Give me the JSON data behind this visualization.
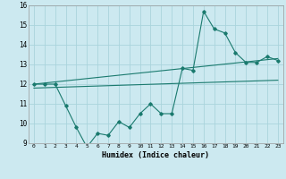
{
  "title": "",
  "xlabel": "Humidex (Indice chaleur)",
  "bg_color": "#cce9f0",
  "grid_color": "#aad4dc",
  "line_color": "#1a7a6e",
  "series1_x": [
    0,
    1,
    2,
    3,
    4,
    5,
    6,
    7,
    8,
    9,
    10,
    11,
    12,
    13,
    14,
    15,
    16,
    17,
    18,
    19,
    20,
    21,
    22,
    23
  ],
  "series1_y": [
    12.0,
    12.0,
    12.0,
    10.9,
    9.8,
    8.8,
    9.5,
    9.4,
    10.1,
    9.8,
    10.5,
    11.0,
    10.5,
    10.5,
    12.8,
    12.7,
    15.7,
    14.8,
    14.6,
    13.6,
    13.1,
    13.1,
    13.4,
    13.2
  ],
  "line2_x": [
    0,
    23
  ],
  "line2_y": [
    12.0,
    13.3
  ],
  "line3_x": [
    0,
    23
  ],
  "line3_y": [
    11.8,
    12.2
  ],
  "ylim": [
    9,
    16
  ],
  "xlim": [
    -0.5,
    23.5
  ],
  "yticks": [
    9,
    10,
    11,
    12,
    13,
    14,
    15,
    16
  ],
  "xticks": [
    0,
    1,
    2,
    3,
    4,
    5,
    6,
    7,
    8,
    9,
    10,
    11,
    12,
    13,
    14,
    15,
    16,
    17,
    18,
    19,
    20,
    21,
    22,
    23
  ]
}
